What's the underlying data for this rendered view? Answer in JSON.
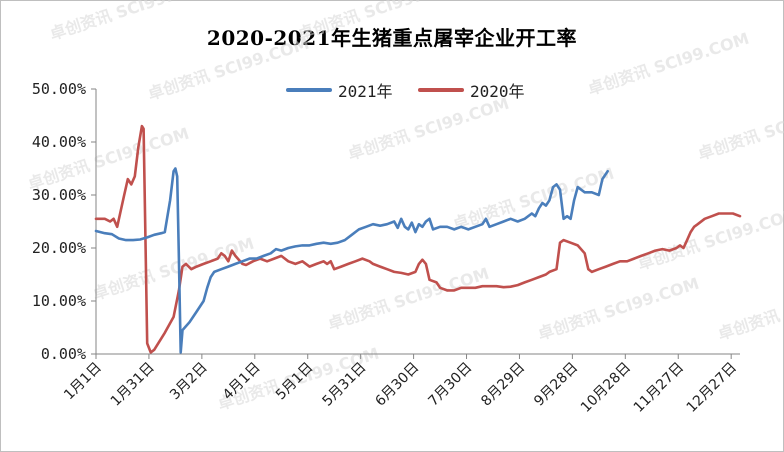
{
  "chart_data": {
    "type": "line",
    "title": "2020-2021年生猪重点屠宰企业开工率",
    "watermark": "卓创资讯 SCI99.COM",
    "x_ticks": [
      "1月1日",
      "1月31日",
      "3月2日",
      "4月1日",
      "5月1日",
      "5月31日",
      "6月30日",
      "7月30日",
      "8月29日",
      "9月28日",
      "10月28日",
      "11月27日",
      "12月27日"
    ],
    "y_ticks": [
      "0.00%",
      "10.00%",
      "20.00%",
      "30.00%",
      "40.00%",
      "50.00%"
    ],
    "ylim": [
      0,
      50
    ],
    "xlim_day": [
      1,
      366
    ],
    "grid": false,
    "legend_position": "top-center",
    "series": [
      {
        "name": "2021年",
        "color": "#4a7ebb",
        "points": [
          [
            1,
            23.2
          ],
          [
            6,
            22.8
          ],
          [
            10,
            22.6
          ],
          [
            14,
            21.8
          ],
          [
            18,
            21.5
          ],
          [
            22,
            21.5
          ],
          [
            26,
            21.6
          ],
          [
            30,
            22.0
          ],
          [
            34,
            22.5
          ],
          [
            38,
            22.8
          ],
          [
            40,
            23.0
          ],
          [
            43,
            29.0
          ],
          [
            45,
            34.5
          ],
          [
            46,
            35.0
          ],
          [
            47,
            33.5
          ],
          [
            48,
            18.0
          ],
          [
            49,
            0.3
          ],
          [
            50,
            4.5
          ],
          [
            54,
            6.0
          ],
          [
            58,
            8.0
          ],
          [
            62,
            10.0
          ],
          [
            64,
            12.5
          ],
          [
            66,
            14.5
          ],
          [
            68,
            15.5
          ],
          [
            72,
            16.0
          ],
          [
            76,
            16.5
          ],
          [
            80,
            17.0
          ],
          [
            84,
            17.5
          ],
          [
            88,
            18.0
          ],
          [
            92,
            18.0
          ],
          [
            96,
            18.5
          ],
          [
            100,
            19.0
          ],
          [
            103,
            19.8
          ],
          [
            106,
            19.5
          ],
          [
            110,
            20.0
          ],
          [
            114,
            20.3
          ],
          [
            118,
            20.5
          ],
          [
            122,
            20.5
          ],
          [
            126,
            20.8
          ],
          [
            130,
            21.0
          ],
          [
            134,
            20.8
          ],
          [
            138,
            21.0
          ],
          [
            142,
            21.5
          ],
          [
            146,
            22.5
          ],
          [
            150,
            23.5
          ],
          [
            154,
            24.0
          ],
          [
            158,
            24.5
          ],
          [
            162,
            24.2
          ],
          [
            166,
            24.5
          ],
          [
            170,
            25.0
          ],
          [
            172,
            23.8
          ],
          [
            174,
            25.5
          ],
          [
            176,
            24.0
          ],
          [
            178,
            23.5
          ],
          [
            180,
            24.8
          ],
          [
            182,
            23.0
          ],
          [
            184,
            24.5
          ],
          [
            186,
            24.0
          ],
          [
            188,
            25.0
          ],
          [
            190,
            25.5
          ],
          [
            192,
            23.5
          ],
          [
            196,
            24.0
          ],
          [
            200,
            24.0
          ],
          [
            204,
            23.5
          ],
          [
            208,
            24.0
          ],
          [
            212,
            23.5
          ],
          [
            216,
            24.0
          ],
          [
            220,
            24.5
          ],
          [
            222,
            25.5
          ],
          [
            224,
            24.0
          ],
          [
            228,
            24.5
          ],
          [
            232,
            25.0
          ],
          [
            236,
            25.5
          ],
          [
            240,
            25.0
          ],
          [
            244,
            25.5
          ],
          [
            248,
            26.5
          ],
          [
            250,
            26.0
          ],
          [
            252,
            27.5
          ],
          [
            254,
            28.5
          ],
          [
            256,
            28.0
          ],
          [
            258,
            29.0
          ],
          [
            260,
            31.5
          ],
          [
            262,
            32.0
          ],
          [
            264,
            31.0
          ],
          [
            266,
            25.5
          ],
          [
            268,
            26.0
          ],
          [
            270,
            25.5
          ],
          [
            272,
            29.0
          ],
          [
            274,
            31.5
          ],
          [
            276,
            31.0
          ],
          [
            278,
            30.5
          ],
          [
            282,
            30.5
          ],
          [
            286,
            30.0
          ],
          [
            288,
            33.0
          ],
          [
            291,
            34.5
          ]
        ]
      },
      {
        "name": "2020年",
        "color": "#c0504d",
        "points": [
          [
            1,
            25.5
          ],
          [
            6,
            25.5
          ],
          [
            9,
            25.0
          ],
          [
            11,
            25.5
          ],
          [
            13,
            24.0
          ],
          [
            15,
            27.0
          ],
          [
            17,
            30.0
          ],
          [
            19,
            33.0
          ],
          [
            21,
            32.0
          ],
          [
            23,
            33.5
          ],
          [
            25,
            39.0
          ],
          [
            27,
            43.0
          ],
          [
            28,
            42.5
          ],
          [
            30,
            2.0
          ],
          [
            32,
            0.3
          ],
          [
            34,
            0.8
          ],
          [
            40,
            4.0
          ],
          [
            45,
            7.0
          ],
          [
            48,
            12.0
          ],
          [
            50,
            16.5
          ],
          [
            52,
            17.0
          ],
          [
            55,
            16.0
          ],
          [
            58,
            16.5
          ],
          [
            62,
            17.0
          ],
          [
            66,
            17.5
          ],
          [
            70,
            18.0
          ],
          [
            72,
            19.0
          ],
          [
            74,
            18.5
          ],
          [
            76,
            17.5
          ],
          [
            78,
            19.5
          ],
          [
            80,
            18.5
          ],
          [
            84,
            17.0
          ],
          [
            86,
            16.8
          ],
          [
            90,
            17.5
          ],
          [
            94,
            18.0
          ],
          [
            98,
            17.5
          ],
          [
            102,
            18.0
          ],
          [
            106,
            18.5
          ],
          [
            110,
            17.5
          ],
          [
            114,
            17.0
          ],
          [
            118,
            17.5
          ],
          [
            122,
            16.5
          ],
          [
            126,
            17.0
          ],
          [
            130,
            17.5
          ],
          [
            132,
            17.0
          ],
          [
            134,
            17.5
          ],
          [
            136,
            16.0
          ],
          [
            140,
            16.5
          ],
          [
            144,
            17.0
          ],
          [
            148,
            17.5
          ],
          [
            152,
            18.0
          ],
          [
            156,
            17.5
          ],
          [
            158,
            17.0
          ],
          [
            162,
            16.5
          ],
          [
            166,
            16.0
          ],
          [
            170,
            15.5
          ],
          [
            174,
            15.3
          ],
          [
            178,
            15.0
          ],
          [
            182,
            15.5
          ],
          [
            184,
            17.0
          ],
          [
            186,
            17.8
          ],
          [
            188,
            17.0
          ],
          [
            190,
            14.0
          ],
          [
            194,
            13.5
          ],
          [
            196,
            12.5
          ],
          [
            200,
            12.0
          ],
          [
            204,
            12.0
          ],
          [
            208,
            12.5
          ],
          [
            212,
            12.5
          ],
          [
            216,
            12.5
          ],
          [
            220,
            12.8
          ],
          [
            224,
            12.8
          ],
          [
            228,
            12.8
          ],
          [
            232,
            12.6
          ],
          [
            236,
            12.7
          ],
          [
            240,
            13.0
          ],
          [
            244,
            13.5
          ],
          [
            248,
            14.0
          ],
          [
            252,
            14.5
          ],
          [
            256,
            15.0
          ],
          [
            258,
            15.5
          ],
          [
            262,
            16.0
          ],
          [
            264,
            21.0
          ],
          [
            266,
            21.5
          ],
          [
            270,
            21.0
          ],
          [
            274,
            20.5
          ],
          [
            278,
            19.0
          ],
          [
            280,
            16.0
          ],
          [
            282,
            15.5
          ],
          [
            286,
            16.0
          ],
          [
            290,
            16.5
          ],
          [
            294,
            17.0
          ],
          [
            298,
            17.5
          ],
          [
            302,
            17.5
          ],
          [
            306,
            18.0
          ],
          [
            310,
            18.5
          ],
          [
            314,
            19.0
          ],
          [
            318,
            19.5
          ],
          [
            322,
            19.8
          ],
          [
            326,
            19.5
          ],
          [
            330,
            20.0
          ],
          [
            332,
            20.5
          ],
          [
            334,
            20.0
          ],
          [
            336,
            21.5
          ],
          [
            338,
            23.0
          ],
          [
            340,
            24.0
          ],
          [
            342,
            24.5
          ],
          [
            346,
            25.5
          ],
          [
            350,
            26.0
          ],
          [
            354,
            26.5
          ],
          [
            358,
            26.5
          ],
          [
            362,
            26.5
          ],
          [
            366,
            26.0
          ]
        ]
      }
    ]
  }
}
